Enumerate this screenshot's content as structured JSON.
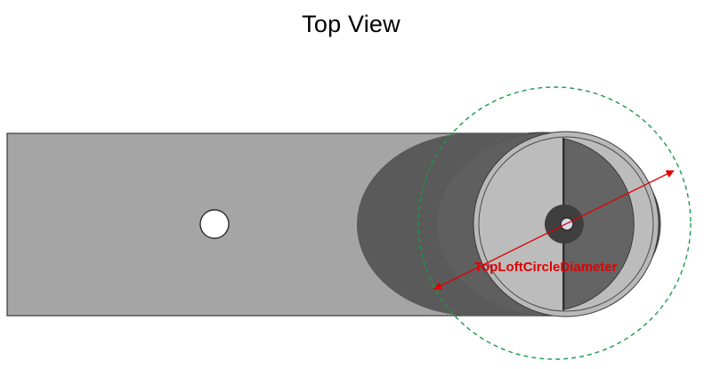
{
  "view": {
    "title": "Top View"
  },
  "annotation": {
    "dimension_label": "TopLoftCircleDiameter",
    "dimension_color": "#e00000",
    "reference_circle_color": "#1a9a4a"
  },
  "colors": {
    "bar_fill": "#a5a5a5",
    "bar_edge": "#3a3a3a",
    "hub_dark": "#5f5f5f",
    "rim_light": "#b9b9b9",
    "disc_light": "#bcbcbc",
    "half_disc_dark": "#646464",
    "hole_fill": "#ffffff"
  }
}
